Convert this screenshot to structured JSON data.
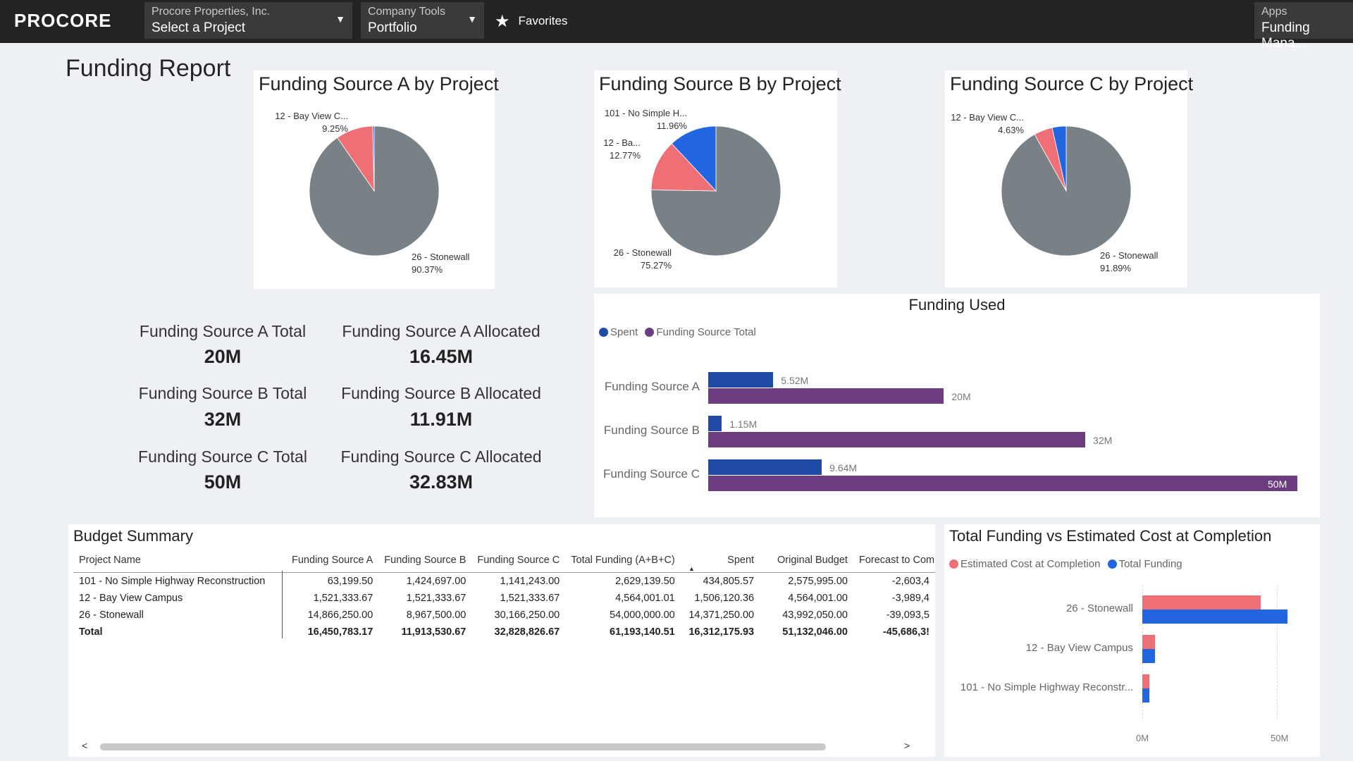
{
  "topbar": {
    "logo": "PROCORE",
    "company": {
      "label": "Procore Properties, Inc.",
      "value": "Select a Project"
    },
    "tool": {
      "label": "Company Tools",
      "value": "Portfolio"
    },
    "favorites": "Favorites",
    "apps": {
      "label": "Apps",
      "value": "Funding Mana..."
    }
  },
  "page": {
    "title": "Funding Report"
  },
  "pies": [
    {
      "title": "Funding Source A by Project",
      "labels": [
        {
          "name": "12 - Bay View C...",
          "pct": "9.25%"
        },
        {
          "name": "26 - Stonewall",
          "pct": "90.37%"
        }
      ]
    },
    {
      "title": "Funding Source B by Project",
      "labels": [
        {
          "name": "101 - No Simple H...",
          "pct": "11.96%"
        },
        {
          "name": "12 - Ba...",
          "pct": "12.77%"
        },
        {
          "name": "26 - Stonewall",
          "pct": "75.27%"
        }
      ]
    },
    {
      "title": "Funding Source C by Project",
      "labels": [
        {
          "name": "12 - Bay View C...",
          "pct": "4.63%"
        },
        {
          "name": "26 - Stonewall",
          "pct": "91.89%"
        }
      ]
    }
  ],
  "kpis": [
    {
      "label": "Funding Source A Total",
      "value": "20M"
    },
    {
      "label": "Funding Source A Allocated",
      "value": "16.45M"
    },
    {
      "label": "Funding Source B Total",
      "value": "32M"
    },
    {
      "label": "Funding Source B Allocated",
      "value": "11.91M"
    },
    {
      "label": "Funding Source C Total",
      "value": "50M"
    },
    {
      "label": "Funding Source C Allocated",
      "value": "32.83M"
    }
  ],
  "funding_used": {
    "title": "Funding Used",
    "legend": [
      "Spent",
      "Funding Source Total"
    ],
    "rows": [
      {
        "category": "Funding Source A",
        "spent_label": "5.52M",
        "total_label": "20M"
      },
      {
        "category": "Funding Source B",
        "spent_label": "1.15M",
        "total_label": "32M"
      },
      {
        "category": "Funding Source C",
        "spent_label": "9.64M",
        "total_label": "50M"
      }
    ]
  },
  "budget_summary": {
    "title": "Budget Summary",
    "columns": [
      "Project Name",
      "Funding Source A",
      "Funding Source B",
      "Funding Source C",
      "Total Funding (A+B+C)",
      "Spent",
      "Original Budget",
      "Forecast to Com"
    ],
    "rows": [
      [
        "101 - No Simple Highway Reconstruction",
        "63,199.50",
        "1,424,697.00",
        "1,141,243.00",
        "2,629,139.50",
        "434,805.57",
        "2,575,995.00",
        "-2,603,4"
      ],
      [
        "12 - Bay View Campus",
        "1,521,333.67",
        "1,521,333.67",
        "1,521,333.67",
        "4,564,001.01",
        "1,506,120.36",
        "4,564,001.00",
        "-3,989,4"
      ],
      [
        "26 - Stonewall",
        "14,866,250.00",
        "8,967,500.00",
        "30,166,250.00",
        "54,000,000.00",
        "14,371,250.00",
        "43,992,050.00",
        "-39,093,5"
      ]
    ],
    "total": [
      "Total",
      "16,450,783.17",
      "11,913,530.67",
      "32,828,826.67",
      "61,193,140.51",
      "16,312,175.93",
      "51,132,046.00",
      "-45,686,3!"
    ],
    "scroll_left": "<",
    "scroll_right": ">"
  },
  "total_vs_estimated": {
    "title": "Total Funding vs Estimated Cost at Completion",
    "legend": [
      "Estimated Cost at Completion",
      "Total Funding"
    ],
    "categories": [
      "26 - Stonewall",
      "12 - Bay View Campus",
      "101 - No Simple Highway Reconstr..."
    ],
    "axis_ticks": [
      "0M",
      "50M"
    ]
  },
  "colors": {
    "topbar": "#232323",
    "pie_gray": "#7a8186",
    "pie_red": "#ee6f75",
    "pie_blue": "#2165e0",
    "spent_blue": "#1f4ba6",
    "total_purple": "#6b3d80",
    "est_red": "#ee6f75",
    "funding_blue": "#2165e0"
  },
  "chart_data": [
    {
      "type": "pie",
      "title": "Funding Source A by Project",
      "categories": [
        "26 - Stonewall",
        "12 - Bay View Campus",
        "101 - No Simple Highway Reconstruction"
      ],
      "values": [
        90.37,
        9.25,
        0.38
      ]
    },
    {
      "type": "pie",
      "title": "Funding Source B by Project",
      "categories": [
        "26 - Stonewall",
        "12 - Bay View Campus",
        "101 - No Simple Highway Reconstruction"
      ],
      "values": [
        75.27,
        12.77,
        11.96
      ]
    },
    {
      "type": "pie",
      "title": "Funding Source C by Project",
      "categories": [
        "26 - Stonewall",
        "12 - Bay View Campus",
        "101 - No Simple Highway Reconstruction"
      ],
      "values": [
        91.89,
        4.63,
        3.48
      ]
    },
    {
      "type": "bar",
      "title": "Funding Used",
      "orientation": "horizontal",
      "categories": [
        "Funding Source A",
        "Funding Source B",
        "Funding Source C"
      ],
      "series": [
        {
          "name": "Spent",
          "values": [
            5.52,
            1.15,
            9.64
          ]
        },
        {
          "name": "Funding Source Total",
          "values": [
            20,
            32,
            50
          ]
        }
      ],
      "xlim": [
        0,
        50
      ]
    },
    {
      "type": "bar",
      "title": "Total Funding vs Estimated Cost at Completion",
      "orientation": "horizontal",
      "categories": [
        "26 - Stonewall",
        "12 - Bay View Campus",
        "101 - No Simple Highway Reconstr..."
      ],
      "series": [
        {
          "name": "Estimated Cost at Completion",
          "values": [
            44,
            4.6,
            2.6
          ]
        },
        {
          "name": "Total Funding",
          "values": [
            54,
            4.6,
            2.6
          ]
        }
      ],
      "xlim": [
        0,
        54
      ],
      "xticks": [
        "0M",
        "50M"
      ]
    }
  ]
}
